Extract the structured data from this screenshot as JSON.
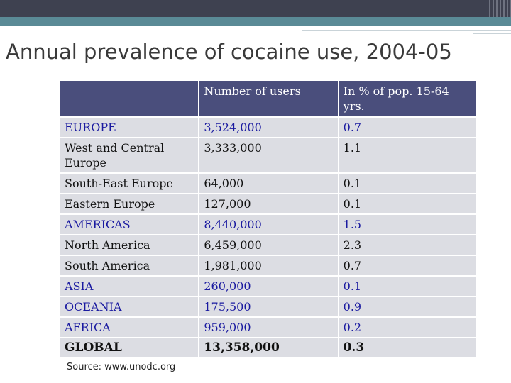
{
  "slide": {
    "title": "Annual prevalence of cocaine use, 2004-05",
    "source": "Source: www.unodc.org"
  },
  "table": {
    "headers": [
      "",
      "Number of users",
      "In % of pop. 15-64 yrs."
    ],
    "rows": [
      {
        "region": "EUROPE",
        "users": "3,524,000",
        "percent": "0.7",
        "type": "region"
      },
      {
        "region": "West and Central Europe",
        "users": "3,333,000",
        "percent": "1.1",
        "type": "sub"
      },
      {
        "region": "South-East Europe",
        "users": "64,000",
        "percent": "0.1",
        "type": "sub"
      },
      {
        "region": "Eastern Europe",
        "users": "127,000",
        "percent": "0.1",
        "type": "sub"
      },
      {
        "region": "AMERICAS",
        "users": "8,440,000",
        "percent": "1.5",
        "type": "region"
      },
      {
        "region": "North America",
        "users": "6,459,000",
        "percent": "2.3",
        "type": "sub"
      },
      {
        "region": "South America",
        "users": "1,981,000",
        "percent": "0.7",
        "type": "sub"
      },
      {
        "region": "ASIA",
        "users": "260,000",
        "percent": "0.1",
        "type": "region"
      },
      {
        "region": "OCEANIA",
        "users": "175,500",
        "percent": "0.9",
        "type": "region"
      },
      {
        "region": "AFRICA",
        "users": "959,000",
        "percent": "0.2",
        "type": "region"
      },
      {
        "region": "GLOBAL",
        "users": "13,358,000",
        "percent": "0.3",
        "type": "global"
      }
    ]
  },
  "colors": {
    "header_bg": "#4a4e7c",
    "cell_bg": "#dcdde3",
    "region_text": "#1a1aa0",
    "topbar": "#3e4150",
    "accent_band": "#5a8a96"
  }
}
